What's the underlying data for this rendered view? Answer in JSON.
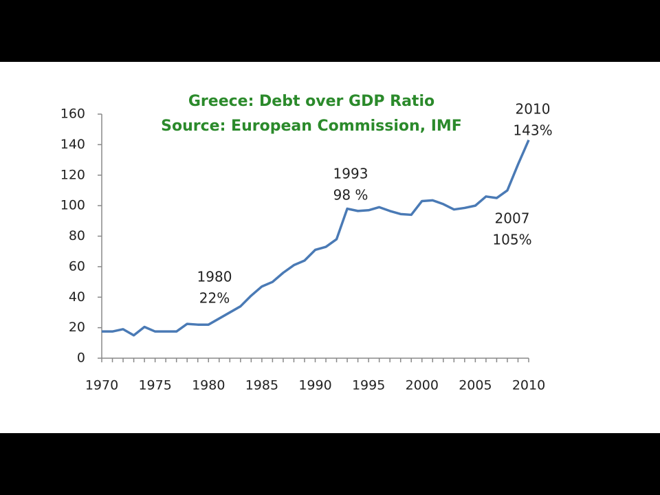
{
  "chart_data": {
    "type": "line",
    "title": [
      "Greece: Debt over GDP Ratio",
      "Source: European Commission, IMF"
    ],
    "x": [
      1970,
      1971,
      1972,
      1973,
      1974,
      1975,
      1976,
      1977,
      1978,
      1979,
      1980,
      1981,
      1982,
      1983,
      1984,
      1985,
      1986,
      1987,
      1988,
      1989,
      1990,
      1991,
      1992,
      1993,
      1994,
      1995,
      1996,
      1997,
      1998,
      1999,
      2000,
      2001,
      2002,
      2003,
      2004,
      2005,
      2006,
      2007,
      2008,
      2009,
      2010
    ],
    "series": [
      {
        "name": "Debt over GDP",
        "color": "#4a7ab5",
        "values": [
          17.5,
          17.5,
          19,
          15,
          20.5,
          17.5,
          17.5,
          17.5,
          22.5,
          22,
          22,
          26,
          30,
          34,
          41,
          47,
          50,
          56,
          61,
          64,
          71,
          73,
          78,
          98,
          96.5,
          97,
          99,
          96.5,
          94.5,
          94,
          103,
          103.5,
          101,
          97.5,
          98.5,
          100,
          106,
          105,
          110,
          127,
          143
        ]
      }
    ],
    "xlim": [
      1970,
      2010
    ],
    "xticks": [
      1970,
      1975,
      1980,
      1985,
      1990,
      1995,
      2000,
      2005,
      2010
    ],
    "ylim": [
      0,
      160
    ],
    "yticks": [
      0,
      20,
      40,
      60,
      80,
      100,
      120,
      140,
      160
    ],
    "annotations": [
      [
        "1980",
        "22%"
      ],
      [
        "1993",
        "98 %"
      ],
      [
        "2007",
        "105%"
      ],
      [
        "2010",
        "143%"
      ]
    ]
  }
}
